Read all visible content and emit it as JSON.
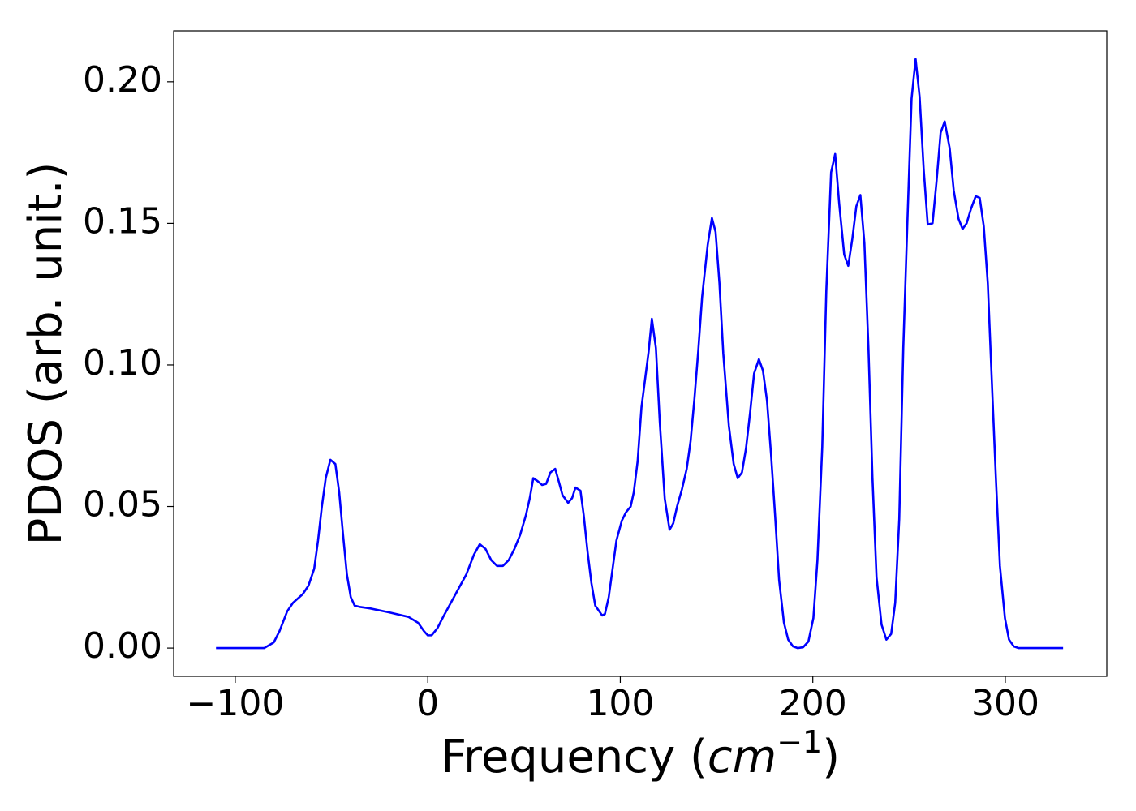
{
  "chart_data": {
    "type": "line",
    "xlabel": [
      "Frequency (",
      "cm",
      "−1",
      ")"
    ],
    "ylabel": "PDOS (arb. unit.)",
    "xlim": [
      -132,
      352.7
    ],
    "ylim": [
      -0.01,
      0.218
    ],
    "xticks": [
      {
        "value": -100,
        "label": "−100"
      },
      0,
      100,
      200,
      300
    ],
    "yticks": [
      {
        "value": 0,
        "label": "0.00"
      },
      {
        "value": 0.05,
        "label": "0.05"
      },
      {
        "value": 0.1,
        "label": "0.10"
      },
      {
        "value": 0.15,
        "label": "0.15"
      },
      {
        "value": 0.2,
        "label": "0.20"
      }
    ],
    "grid": false,
    "series": [
      {
        "color": "#0000ff",
        "x": [
          -110,
          -85,
          -80,
          -77,
          -73,
          -70,
          -65,
          -62,
          -59,
          -57,
          -55,
          -53,
          -50.6,
          -48,
          -46,
          -44,
          -42,
          -40,
          -38,
          -35,
          -30,
          -20,
          -10,
          -5,
          -2,
          0,
          2,
          5,
          8,
          12,
          16,
          20,
          24,
          27,
          30,
          33,
          36,
          39,
          42,
          45,
          48,
          51,
          53,
          54.8,
          57,
          59.4,
          61.5,
          63.7,
          66.2,
          68,
          70,
          72.9,
          75,
          76.7,
          79.3,
          81,
          83,
          85,
          87,
          90.6,
          92,
          94,
          96,
          98,
          100.8,
          103,
          105.4,
          107,
          109,
          111,
          114.7,
          116.4,
          118.5,
          120.5,
          123.1,
          125.6,
          127.5,
          129.5,
          132,
          134.5,
          136.5,
          138.5,
          140.5,
          142.5,
          145.4,
          147.6,
          149.5,
          151.5,
          153.5,
          156.4,
          158.9,
          161,
          163.2,
          165.3,
          167.4,
          169.5,
          172,
          174.1,
          176.2,
          178.3,
          180.4,
          182.5,
          185,
          187.2,
          189.7,
          192.2,
          195,
          197.7,
          200.3,
          202.4,
          204.9,
          207,
          209.5,
          211.6,
          213.7,
          216.3,
          218.4,
          220.5,
          222.6,
          224.7,
          226.8,
          228.9,
          231,
          233.1,
          235.7,
          238.2,
          240.7,
          242.8,
          244.9,
          247,
          249.2,
          251.3,
          253.4,
          255.5,
          257.6,
          259.7,
          262.2,
          264.3,
          266.4,
          268.5,
          271.1,
          273.2,
          275.7,
          277.8,
          279.9,
          282.1,
          284.6,
          286.7,
          288.8,
          290.9,
          293,
          295.1,
          297.2,
          299.8,
          301.9,
          304.4,
          306.9,
          330
        ],
        "values": [
          0,
          0,
          0.002,
          0.006,
          0.013,
          0.016,
          0.019,
          0.022,
          0.028,
          0.038,
          0.05,
          0.06,
          0.0665,
          0.065,
          0.055,
          0.04,
          0.026,
          0.018,
          0.015,
          0.0145,
          0.014,
          0.0126,
          0.011,
          0.0089,
          0.006,
          0.0045,
          0.0045,
          0.007,
          0.011,
          0.016,
          0.021,
          0.026,
          0.033,
          0.0367,
          0.035,
          0.031,
          0.029,
          0.029,
          0.031,
          0.035,
          0.04,
          0.047,
          0.053,
          0.06,
          0.059,
          0.0576,
          0.058,
          0.062,
          0.0633,
          0.059,
          0.054,
          0.0513,
          0.053,
          0.0567,
          0.0556,
          0.047,
          0.034,
          0.023,
          0.015,
          0.0115,
          0.012,
          0.018,
          0.028,
          0.038,
          0.045,
          0.048,
          0.05,
          0.055,
          0.066,
          0.085,
          0.1046,
          0.1163,
          0.106,
          0.08,
          0.0527,
          0.0418,
          0.044,
          0.05,
          0.056,
          0.0633,
          0.073,
          0.088,
          0.105,
          0.124,
          0.1424,
          0.1519,
          0.147,
          0.129,
          0.104,
          0.0785,
          0.065,
          0.06,
          0.062,
          0.0705,
          0.083,
          0.097,
          0.102,
          0.098,
          0.0874,
          0.0685,
          0.047,
          0.024,
          0.009,
          0.003,
          0.0006,
          0,
          0.0003,
          0.0023,
          0.0106,
          0.031,
          0.071,
          0.126,
          0.168,
          0.1745,
          0.157,
          0.139,
          0.135,
          0.1444,
          0.156,
          0.16,
          0.143,
          0.106,
          0.06,
          0.025,
          0.0083,
          0.003,
          0.005,
          0.016,
          0.0456,
          0.106,
          0.152,
          0.194,
          0.208,
          0.1946,
          0.169,
          0.1496,
          0.15,
          0.165,
          0.182,
          0.186,
          0.1765,
          0.1616,
          0.1516,
          0.148,
          0.15,
          0.155,
          0.1596,
          0.159,
          0.149,
          0.1287,
          0.094,
          0.06,
          0.029,
          0.0106,
          0.003,
          0.0006,
          0,
          0
        ]
      }
    ]
  }
}
